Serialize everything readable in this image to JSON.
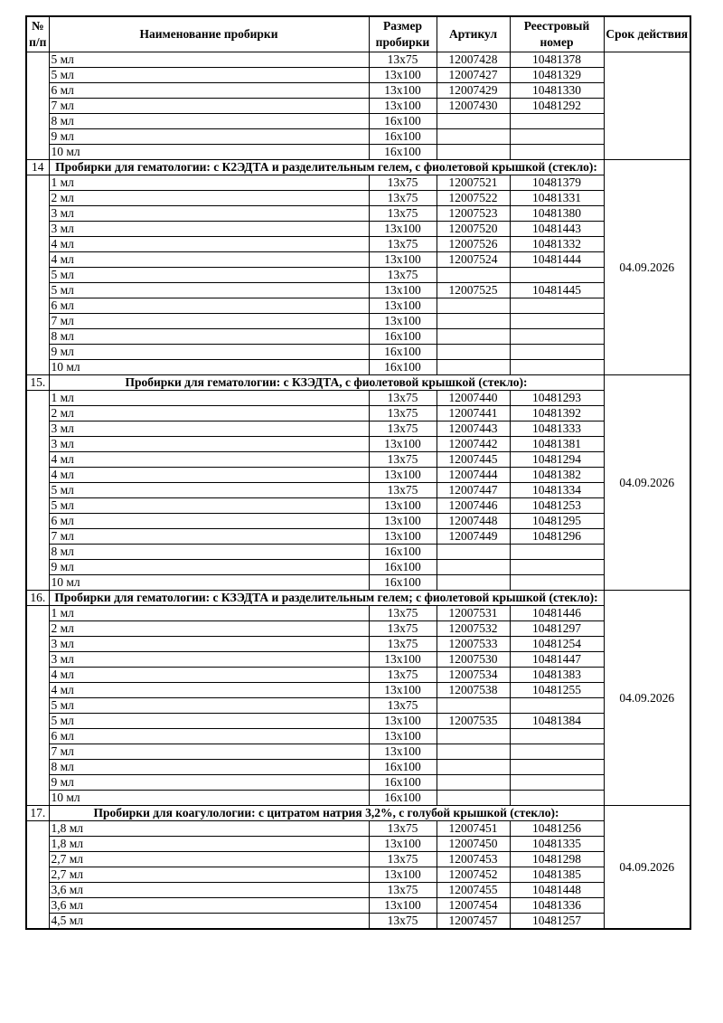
{
  "colors": {
    "text": "#000000",
    "background": "#ffffff",
    "border": "#000000"
  },
  "table": {
    "headers": {
      "num": "№ п/п",
      "name": "Наименование пробирки",
      "size": "Размер пробирки",
      "articul": "Артикул",
      "reg": "Реестровый номер",
      "validity": "Срок действия"
    },
    "sections": [
      {
        "num": "",
        "title": null,
        "validity": "",
        "rows": [
          {
            "name": "5 мл",
            "size": "13x75",
            "articul": "12007428",
            "reg": "10481378"
          },
          {
            "name": "5 мл",
            "size": "13x100",
            "articul": "12007427",
            "reg": "10481329"
          },
          {
            "name": "6 мл",
            "size": "13x100",
            "articul": "12007429",
            "reg": "10481330"
          },
          {
            "name": "7 мл",
            "size": "13x100",
            "articul": "12007430",
            "reg": "10481292"
          },
          {
            "name": "8 мл",
            "size": "16x100",
            "articul": "",
            "reg": ""
          },
          {
            "name": "9 мл",
            "size": "16x100",
            "articul": "",
            "reg": ""
          },
          {
            "name": "10 мл",
            "size": "16x100",
            "articul": "",
            "reg": ""
          }
        ]
      },
      {
        "num": "14",
        "title": "Пробирки для гематологии: с К2ЭДТА и разделительным гелем, с фиолетовой крышкой (стекло):",
        "validity": "04.09.2026",
        "rows": [
          {
            "name": "1 мл",
            "size": "13x75",
            "articul": "12007521",
            "reg": "10481379"
          },
          {
            "name": "2 мл",
            "size": "13x75",
            "articul": "12007522",
            "reg": "10481331"
          },
          {
            "name": "3 мл",
            "size": "13x75",
            "articul": "12007523",
            "reg": "10481380"
          },
          {
            "name": "3 мл",
            "size": "13x100",
            "articul": "12007520",
            "reg": "10481443"
          },
          {
            "name": "4 мл",
            "size": "13x75",
            "articul": "12007526",
            "reg": "10481332"
          },
          {
            "name": "4 мл",
            "size": "13x100",
            "articul": "12007524",
            "reg": "10481444"
          },
          {
            "name": "5 мл",
            "size": "13x75",
            "articul": "",
            "reg": ""
          },
          {
            "name": "5 мл",
            "size": "13x100",
            "articul": "12007525",
            "reg": "10481445"
          },
          {
            "name": "6 мл",
            "size": "13x100",
            "articul": "",
            "reg": ""
          },
          {
            "name": "7 мл",
            "size": "13x100",
            "articul": "",
            "reg": ""
          },
          {
            "name": "8 мл",
            "size": "16x100",
            "articul": "",
            "reg": ""
          },
          {
            "name": "9 мл",
            "size": "16x100",
            "articul": "",
            "reg": ""
          },
          {
            "name": "10 мл",
            "size": "16x100",
            "articul": "",
            "reg": ""
          }
        ]
      },
      {
        "num": "15.",
        "title": "Пробирки для гематологии: с КЗЭДТА, с фиолетовой крышкой (стекло):",
        "validity": "04.09.2026",
        "rows": [
          {
            "name": "1 мл",
            "size": "13x75",
            "articul": "12007440",
            "reg": "10481293"
          },
          {
            "name": "2 мл",
            "size": "13x75",
            "articul": "12007441",
            "reg": "10481392"
          },
          {
            "name": "3 мл",
            "size": "13x75",
            "articul": "12007443",
            "reg": "10481333"
          },
          {
            "name": "3 мл",
            "size": "13x100",
            "articul": "12007442",
            "reg": "10481381"
          },
          {
            "name": "4 мл",
            "size": "13x75",
            "articul": "12007445",
            "reg": "10481294"
          },
          {
            "name": "4 мл",
            "size": "13x100",
            "articul": "12007444",
            "reg": "10481382"
          },
          {
            "name": "5 мл",
            "size": "13x75",
            "articul": "12007447",
            "reg": "10481334"
          },
          {
            "name": "5 мл",
            "size": "13x100",
            "articul": "12007446",
            "reg": "10481253"
          },
          {
            "name": "6 мл",
            "size": "13x100",
            "articul": "12007448",
            "reg": "10481295"
          },
          {
            "name": "7 мл",
            "size": "13x100",
            "articul": "12007449",
            "reg": "10481296"
          },
          {
            "name": "8 мл",
            "size": "16x100",
            "articul": "",
            "reg": ""
          },
          {
            "name": "9 мл",
            "size": "16x100",
            "articul": "",
            "reg": ""
          },
          {
            "name": "10 мл",
            "size": "16x100",
            "articul": "",
            "reg": ""
          }
        ]
      },
      {
        "num": "16.",
        "title": "Пробирки для гематологии: с КЗЭДТА и разделительным гелем; с фиолетовой крышкой (стекло):",
        "validity": "04.09.2026",
        "rows": [
          {
            "name": "1 мл",
            "size": "13x75",
            "articul": "12007531",
            "reg": "10481446"
          },
          {
            "name": "2 мл",
            "size": "13x75",
            "articul": "12007532",
            "reg": "10481297"
          },
          {
            "name": "3 мл",
            "size": "13x75",
            "articul": "12007533",
            "reg": "10481254"
          },
          {
            "name": "3 мл",
            "size": "13x100",
            "articul": "12007530",
            "reg": "10481447"
          },
          {
            "name": "4 мл",
            "size": "13x75",
            "articul": "12007534",
            "reg": "10481383"
          },
          {
            "name": "4 мл",
            "size": "13x100",
            "articul": "12007538",
            "reg": "10481255"
          },
          {
            "name": "5 мл",
            "size": "13x75",
            "articul": "",
            "reg": ""
          },
          {
            "name": "5 мл",
            "size": "13x100",
            "articul": "12007535",
            "reg": "10481384"
          },
          {
            "name": "6 мл",
            "size": "13x100",
            "articul": "",
            "reg": ""
          },
          {
            "name": "7 мл",
            "size": "13x100",
            "articul": "",
            "reg": ""
          },
          {
            "name": "8 мл",
            "size": "16x100",
            "articul": "",
            "reg": ""
          },
          {
            "name": "9 мл",
            "size": "16x100",
            "articul": "",
            "reg": ""
          },
          {
            "name": "10 мл",
            "size": "16x100",
            "articul": "",
            "reg": ""
          }
        ]
      },
      {
        "num": "17.",
        "title": "Пробирки для коагулологии: с цитратом натрия 3,2%, с голубой крышкой (стекло):",
        "validity": "04.09.2026",
        "rows": [
          {
            "name": "1,8 мл",
            "size": "13x75",
            "articul": "12007451",
            "reg": "10481256"
          },
          {
            "name": "1,8 мл",
            "size": "13x100",
            "articul": "12007450",
            "reg": "10481335"
          },
          {
            "name": "2,7 мл",
            "size": "13x75",
            "articul": "12007453",
            "reg": "10481298"
          },
          {
            "name": "2,7 мл",
            "size": "13x100",
            "articul": "12007452",
            "reg": "10481385"
          },
          {
            "name": "3,6 мл",
            "size": "13x75",
            "articul": "12007455",
            "reg": "10481448"
          },
          {
            "name": "3,6 мл",
            "size": "13x100",
            "articul": "12007454",
            "reg": "10481336"
          },
          {
            "name": "4,5 мл",
            "size": "13x75",
            "articul": "12007457",
            "reg": "10481257"
          }
        ]
      }
    ]
  }
}
